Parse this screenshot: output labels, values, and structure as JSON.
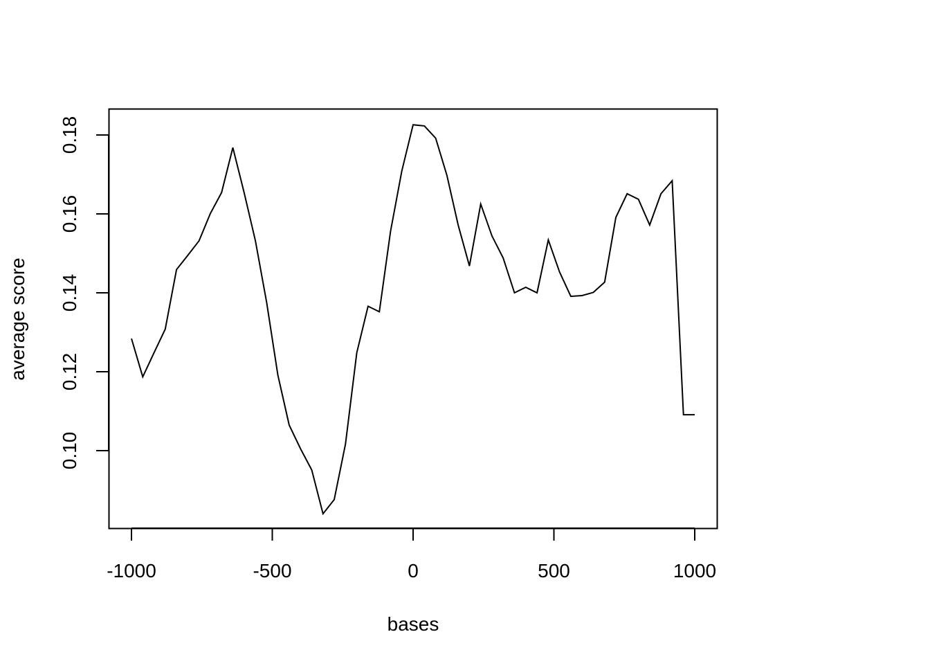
{
  "chart_data": {
    "type": "line",
    "title": "",
    "xlabel": "bases",
    "ylabel": "average score",
    "xlim": [
      -1000,
      1000
    ],
    "ylim": [
      0.084,
      0.183
    ],
    "x_ticks": [
      -1000,
      -500,
      0,
      500,
      1000
    ],
    "x_tick_labels": [
      "-1000",
      "-500",
      "0",
      "500",
      "1000"
    ],
    "y_ticks": [
      0.1,
      0.12,
      0.14,
      0.16,
      0.18
    ],
    "y_tick_labels": [
      "0.10",
      "0.12",
      "0.14",
      "0.16",
      "0.18"
    ],
    "grid": false,
    "line_color": "#000000",
    "series": [
      {
        "x": [
          -1000,
          -960,
          -920,
          -880,
          -840,
          -800,
          -760,
          -720,
          -680,
          -640,
          -600,
          -560,
          -520,
          -480,
          -440,
          -400,
          -360,
          -320,
          -280,
          -240,
          -200,
          -160,
          -120,
          -80,
          -40,
          0,
          40,
          80,
          120,
          160,
          200,
          240,
          280,
          320,
          360,
          400,
          440,
          480,
          520,
          560,
          600,
          640,
          680,
          720,
          760,
          800,
          840,
          880,
          920,
          960,
          1000
        ],
        "y": [
          0.1284,
          0.1187,
          0.1248,
          0.1308,
          0.1459,
          0.1495,
          0.1532,
          0.1601,
          0.1654,
          0.1768,
          0.1654,
          0.1532,
          0.1375,
          0.1191,
          0.1065,
          0.1005,
          0.0951,
          0.084,
          0.0876,
          0.1017,
          0.1248,
          0.1366,
          0.1352,
          0.1556,
          0.1709,
          0.1826,
          0.1823,
          0.1792,
          0.1698,
          0.1572,
          0.1468,
          0.1625,
          0.1544,
          0.1488,
          0.14,
          0.1414,
          0.14,
          0.1534,
          0.1453,
          0.1391,
          0.1393,
          0.1401,
          0.1427,
          0.1591,
          0.1651,
          0.1637,
          0.1572,
          0.1651,
          0.1684,
          0.1091,
          0.1091
        ]
      }
    ]
  }
}
